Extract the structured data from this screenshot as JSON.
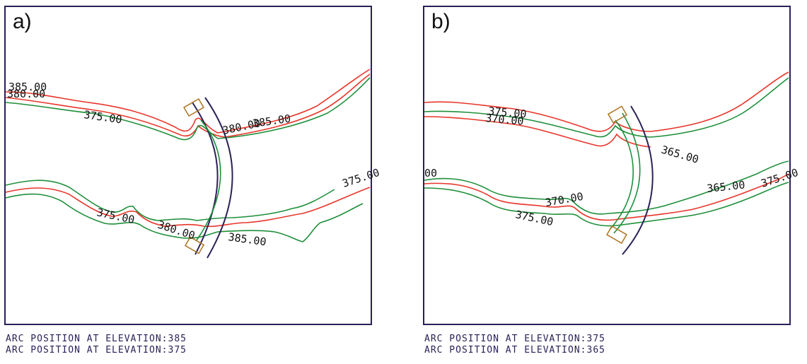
{
  "panels": [
    {
      "label": "a)",
      "contour_labels": [
        "385.00",
        "380.00",
        "375.00",
        "380.00",
        "385.00",
        "375.00",
        "375.00",
        "380.00",
        "385.00"
      ],
      "status": [
        {
          "prefix": "ARC POSITION AT ELEVATION:",
          "value": "385"
        },
        {
          "prefix": "ARC POSITION AT ELEVATION:",
          "value": "375"
        }
      ]
    },
    {
      "label": "b)",
      "contour_labels": [
        "375.00",
        "370.00",
        "365.00",
        "00",
        "370.00",
        "375.00",
        "365.00",
        "375.00"
      ],
      "status": [
        {
          "prefix": "ARC POSITION AT ELEVATION:",
          "value": "375"
        },
        {
          "prefix": "ARC POSITION AT ELEVATION:",
          "value": "365"
        }
      ]
    }
  ],
  "colors": {
    "frame": "#2b2158",
    "contour_red": "#e8352a",
    "contour_green": "#1e8f3a",
    "arc": "#2b2158",
    "abutment": "#b07a2a"
  }
}
